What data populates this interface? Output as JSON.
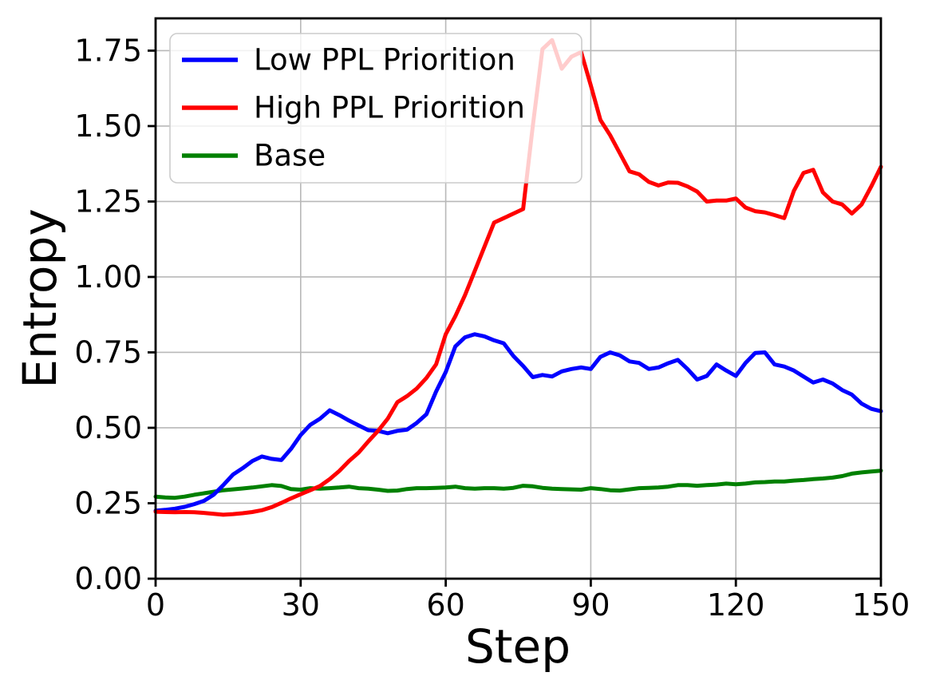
{
  "figure": {
    "background_color": "#ffffff",
    "frame_color": "#000000",
    "grid_color": "#b8b8b8",
    "legend": {
      "position": "upper left",
      "background_color": "#ffffff",
      "background_opacity": 0.8,
      "border_color": "#cccccc"
    }
  },
  "chart_data": {
    "type": "line",
    "title": "",
    "xlabel": "Step",
    "ylabel": "Entropy",
    "xlim": [
      0,
      150
    ],
    "ylim": [
      0,
      1.857
    ],
    "grid": true,
    "legend_position": "upper left",
    "x_tick_labels": [
      "0",
      "30",
      "60",
      "90",
      "120",
      "150"
    ],
    "x_tick_values": [
      0,
      30,
      60,
      90,
      120,
      150
    ],
    "y_tick_labels": [
      "0.00",
      "0.25",
      "0.50",
      "0.75",
      "1.00",
      "1.25",
      "1.50",
      "1.75"
    ],
    "y_tick_values": [
      0,
      0.25,
      0.5,
      0.75,
      1.0,
      1.25,
      1.5,
      1.75
    ],
    "x": [
      0,
      2,
      4,
      6,
      8,
      10,
      12,
      14,
      16,
      18,
      20,
      22,
      24,
      26,
      28,
      30,
      32,
      34,
      36,
      38,
      40,
      42,
      44,
      46,
      48,
      50,
      52,
      54,
      56,
      58,
      60,
      62,
      64,
      66,
      68,
      70,
      72,
      74,
      76,
      78,
      80,
      82,
      84,
      86,
      88,
      90,
      92,
      94,
      96,
      98,
      100,
      102,
      104,
      106,
      108,
      110,
      112,
      114,
      116,
      118,
      120,
      122,
      124,
      126,
      128,
      130,
      132,
      134,
      136,
      138,
      140,
      142,
      144,
      146,
      148,
      150
    ],
    "series": [
      {
        "name": "Low PPL Priorition",
        "color": "#0000ff",
        "values": [
          0.225,
          0.228,
          0.232,
          0.238,
          0.247,
          0.258,
          0.278,
          0.31,
          0.345,
          0.366,
          0.39,
          0.405,
          0.397,
          0.393,
          0.43,
          0.476,
          0.51,
          0.53,
          0.558,
          0.542,
          0.524,
          0.508,
          0.492,
          0.49,
          0.482,
          0.49,
          0.494,
          0.516,
          0.545,
          0.62,
          0.685,
          0.77,
          0.8,
          0.81,
          0.803,
          0.79,
          0.78,
          0.738,
          0.705,
          0.668,
          0.675,
          0.67,
          0.687,
          0.695,
          0.7,
          0.695,
          0.735,
          0.75,
          0.74,
          0.72,
          0.715,
          0.695,
          0.7,
          0.714,
          0.725,
          0.695,
          0.66,
          0.672,
          0.71,
          0.69,
          0.672,
          0.715,
          0.748,
          0.75,
          0.71,
          0.703,
          0.69,
          0.67,
          0.65,
          0.66,
          0.647,
          0.625,
          0.61,
          0.58,
          0.563,
          0.555
        ]
      },
      {
        "name": "High PPL Priorition",
        "color": "#ff0000",
        "values": [
          0.222,
          0.221,
          0.22,
          0.221,
          0.22,
          0.218,
          0.215,
          0.212,
          0.214,
          0.217,
          0.221,
          0.227,
          0.237,
          0.251,
          0.266,
          0.28,
          0.293,
          0.307,
          0.33,
          0.357,
          0.39,
          0.418,
          0.455,
          0.49,
          0.53,
          0.585,
          0.605,
          0.63,
          0.665,
          0.71,
          0.81,
          0.87,
          0.94,
          1.02,
          1.1,
          1.18,
          1.195,
          1.21,
          1.225,
          1.5,
          1.755,
          1.785,
          1.69,
          1.73,
          1.745,
          1.635,
          1.52,
          1.47,
          1.41,
          1.35,
          1.34,
          1.315,
          1.303,
          1.313,
          1.312,
          1.3,
          1.283,
          1.25,
          1.253,
          1.253,
          1.26,
          1.23,
          1.218,
          1.214,
          1.205,
          1.195,
          1.285,
          1.345,
          1.355,
          1.28,
          1.25,
          1.24,
          1.21,
          1.24,
          1.3,
          1.365
        ]
      },
      {
        "name": "Base",
        "color": "#008000",
        "values": [
          0.272,
          0.269,
          0.268,
          0.272,
          0.278,
          0.283,
          0.288,
          0.293,
          0.296,
          0.299,
          0.302,
          0.306,
          0.31,
          0.307,
          0.297,
          0.295,
          0.3,
          0.298,
          0.3,
          0.302,
          0.305,
          0.3,
          0.298,
          0.295,
          0.291,
          0.292,
          0.297,
          0.3,
          0.3,
          0.301,
          0.302,
          0.305,
          0.3,
          0.298,
          0.3,
          0.3,
          0.298,
          0.301,
          0.308,
          0.306,
          0.301,
          0.298,
          0.297,
          0.296,
          0.295,
          0.3,
          0.297,
          0.293,
          0.292,
          0.296,
          0.3,
          0.301,
          0.302,
          0.305,
          0.31,
          0.31,
          0.308,
          0.31,
          0.312,
          0.315,
          0.313,
          0.315,
          0.319,
          0.32,
          0.322,
          0.322,
          0.325,
          0.327,
          0.33,
          0.332,
          0.335,
          0.34,
          0.348,
          0.352,
          0.355,
          0.358
        ]
      }
    ]
  }
}
